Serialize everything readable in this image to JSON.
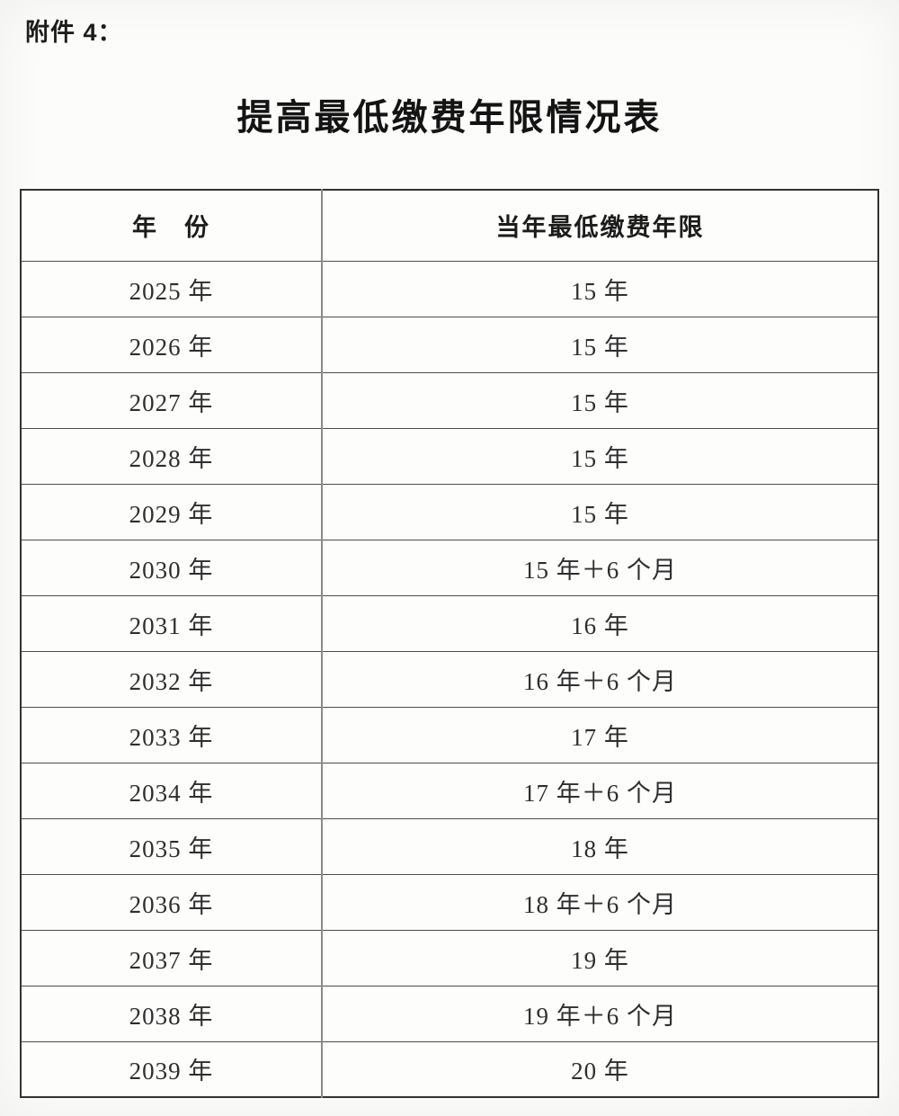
{
  "document": {
    "attachment_label": "附件 4：",
    "title": "提高最低缴费年限情况表"
  },
  "table": {
    "headers": [
      "年　份",
      "当年最低缴费年限"
    ],
    "rows": [
      {
        "year": "2025 年",
        "duration": "15 年"
      },
      {
        "year": "2026 年",
        "duration": "15 年"
      },
      {
        "year": "2027 年",
        "duration": "15 年"
      },
      {
        "year": "2028 年",
        "duration": "15 年"
      },
      {
        "year": "2029 年",
        "duration": "15 年"
      },
      {
        "year": "2030 年",
        "duration": "15 年＋6 个月"
      },
      {
        "year": "2031 年",
        "duration": "16 年"
      },
      {
        "year": "2032 年",
        "duration": "16 年＋6 个月"
      },
      {
        "year": "2033 年",
        "duration": "17 年"
      },
      {
        "year": "2034 年",
        "duration": "17 年＋6 个月"
      },
      {
        "year": "2035 年",
        "duration": "18 年"
      },
      {
        "year": "2036 年",
        "duration": "18 年＋6 个月"
      },
      {
        "year": "2037 年",
        "duration": "19 年"
      },
      {
        "year": "2038 年",
        "duration": "19 年＋6 个月"
      },
      {
        "year": "2039 年",
        "duration": "20 年"
      }
    ]
  },
  "colors": {
    "text": "#2b2b2b",
    "border": "#3c3c3c",
    "background": "#fbfbfa"
  }
}
